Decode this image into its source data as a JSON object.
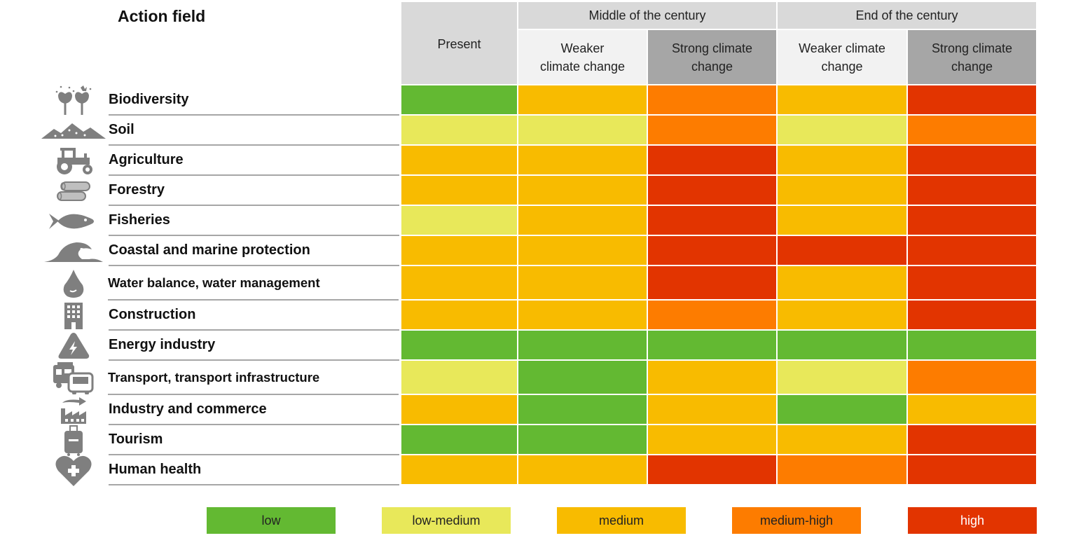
{
  "colors": {
    "low": "#63b932",
    "low-medium": "#e8e85a",
    "medium": "#f8bb00",
    "medium-high": "#fd7c00",
    "high": "#e23400"
  },
  "header": {
    "action_field": "Action field",
    "present": "Present",
    "middle": "Middle of the century",
    "end": "End of the century",
    "weaker": "Weaker climate change",
    "strong": "Strong climate change"
  },
  "chart_data": {
    "type": "table",
    "columns": [
      "Present",
      "Middle of the century – Weaker climate change",
      "Middle of the century – Strong climate change",
      "End of the century – Weaker climate change",
      "End of the century – Strong climate change"
    ],
    "rows": [
      {
        "label": "Biodiversity",
        "icon": "biodiversity-icon",
        "values": [
          "low",
          "medium",
          "medium-high",
          "medium",
          "high"
        ]
      },
      {
        "label": "Soil",
        "icon": "soil-icon",
        "values": [
          "low-medium",
          "low-medium",
          "medium-high",
          "low-medium",
          "medium-high"
        ]
      },
      {
        "label": "Agriculture",
        "icon": "tractor-icon",
        "values": [
          "medium",
          "medium",
          "high",
          "medium",
          "high"
        ]
      },
      {
        "label": "Forestry",
        "icon": "logs-icon",
        "values": [
          "medium",
          "medium",
          "high",
          "medium",
          "high"
        ]
      },
      {
        "label": "Fisheries",
        "icon": "fish-icon",
        "values": [
          "low-medium",
          "medium",
          "high",
          "medium",
          "high"
        ]
      },
      {
        "label": "Coastal and marine protection",
        "icon": "wave-icon",
        "values": [
          "medium",
          "medium",
          "high",
          "high",
          "high"
        ]
      },
      {
        "label": "Water balance, water management",
        "icon": "water-drop-icon",
        "values": [
          "medium",
          "medium",
          "high",
          "medium",
          "high"
        ]
      },
      {
        "label": "Construction",
        "icon": "building-icon",
        "values": [
          "medium",
          "medium",
          "medium-high",
          "medium",
          "high"
        ]
      },
      {
        "label": "Energy industry",
        "icon": "energy-icon",
        "values": [
          "low",
          "low",
          "low",
          "low",
          "low"
        ]
      },
      {
        "label": "Transport, transport infrastructure",
        "icon": "transport-icon",
        "values": [
          "low-medium",
          "low",
          "medium",
          "low-medium",
          "medium-high"
        ]
      },
      {
        "label": "Industry and commerce",
        "icon": "factory-icon",
        "values": [
          "medium",
          "low",
          "medium",
          "low",
          "medium"
        ]
      },
      {
        "label": "Tourism",
        "icon": "suitcase-icon",
        "values": [
          "low",
          "low",
          "medium",
          "medium",
          "high"
        ]
      },
      {
        "label": "Human health",
        "icon": "heart-cross-icon",
        "values": [
          "medium",
          "medium",
          "high",
          "medium-high",
          "high"
        ]
      }
    ],
    "legend": [
      "low",
      "low-medium",
      "medium",
      "medium-high",
      "high"
    ]
  }
}
